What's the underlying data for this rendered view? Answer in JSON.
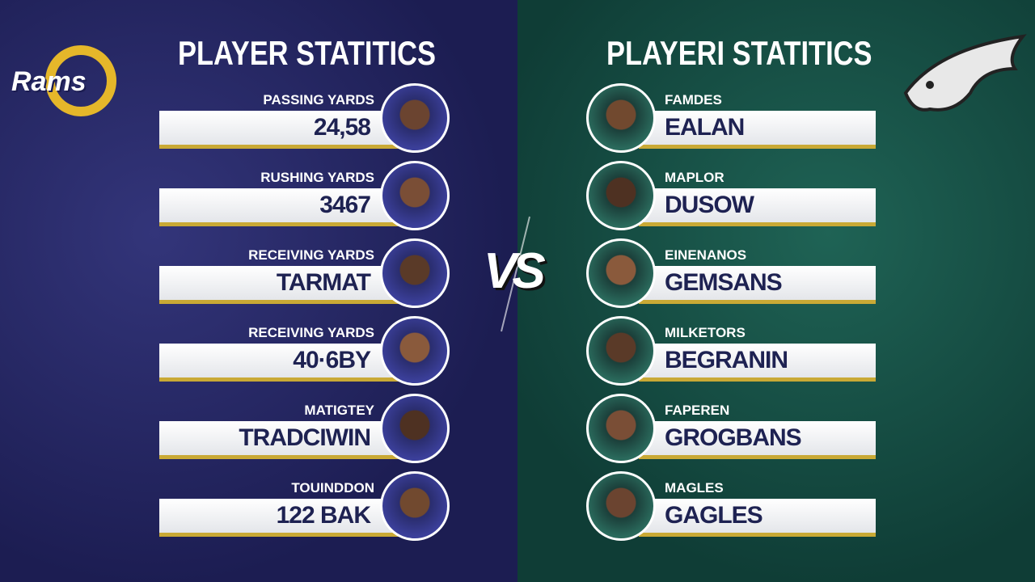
{
  "left": {
    "logo_text": "Rams",
    "title": "PLAYER STATITICS",
    "rows": [
      {
        "label": "PASSING YARDS",
        "value": "24,58"
      },
      {
        "label": "RUSHING YARDS",
        "value": "3467"
      },
      {
        "label": "RECEIVING YARDS",
        "value": "TARMAT"
      },
      {
        "label": "RECEIVING YARDS",
        "value": "40·6BY"
      },
      {
        "label": "MATIGTEY",
        "value": "TRADCIWIN"
      },
      {
        "label": "TOUINDDON",
        "value": "122 BAK"
      }
    ]
  },
  "versus": "VS",
  "right": {
    "title": "PLAYERI STATITICS",
    "rows": [
      {
        "label": "FAMDES",
        "value": "EALAN"
      },
      {
        "label": "MAPLOR",
        "value": "DUSOW"
      },
      {
        "label": "EINENANOS",
        "value": "GEMSANS"
      },
      {
        "label": "MILKETORS",
        "value": "BEGRANIN"
      },
      {
        "label": "FAPEREN",
        "value": "GROGBANS"
      },
      {
        "label": "MAGLES",
        "value": "GAGLES"
      }
    ]
  }
}
